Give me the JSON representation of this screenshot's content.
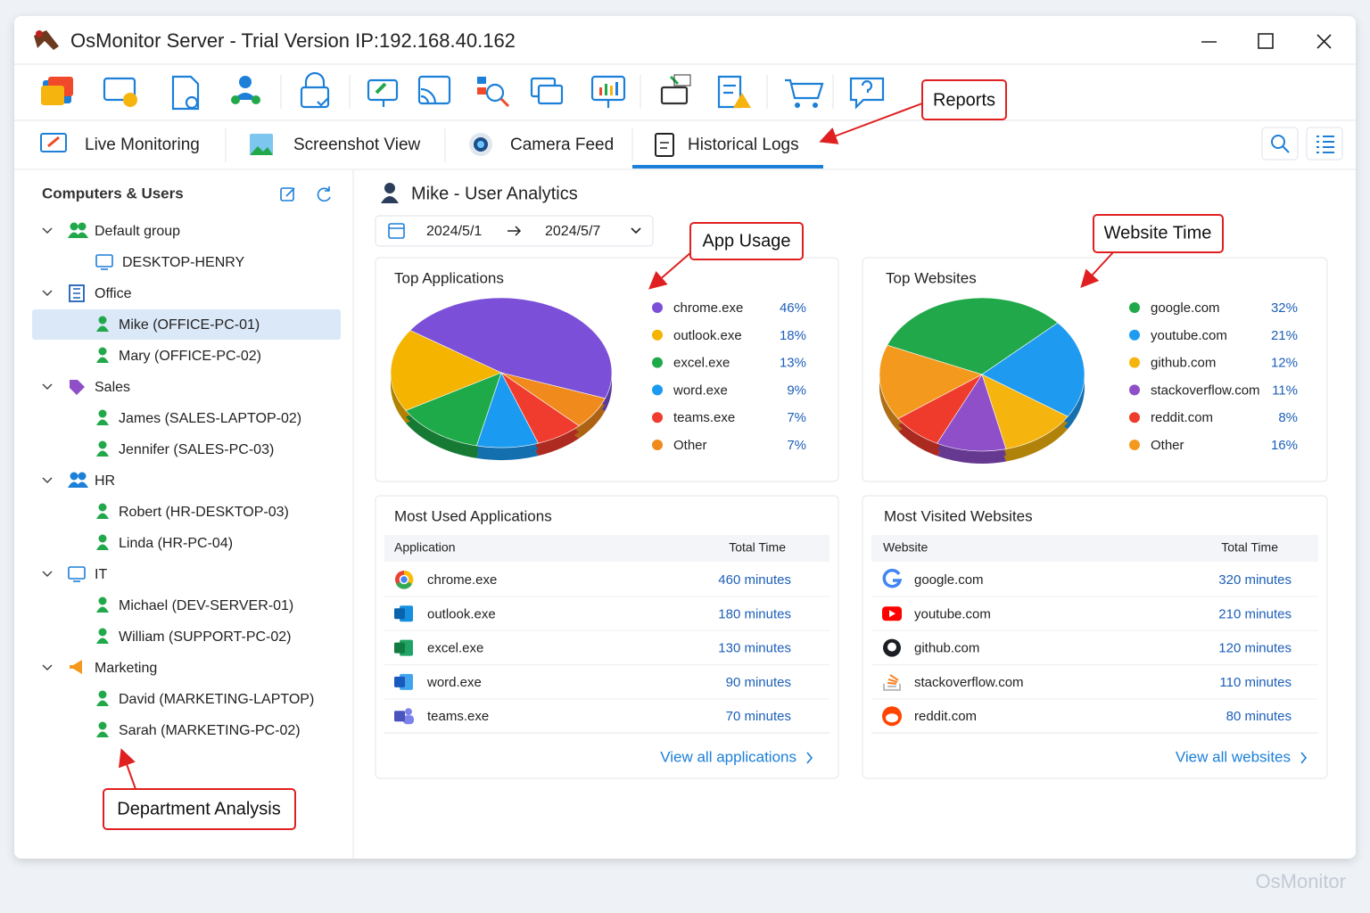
{
  "window": {
    "title": "OsMonitor Server - Trial Version IP:192.168.40.162",
    "watermark": "OsMonitor"
  },
  "tabs": [
    "Live Monitoring",
    "Screenshot View",
    "Camera Feed",
    "Historical Logs"
  ],
  "annotations": {
    "reports": "Reports",
    "app_usage": "App Usage",
    "website_time": "Website Time",
    "department_analysis": "Department Analysis"
  },
  "sidebar": {
    "title": "Computers & Users",
    "tree": [
      {
        "label": "Default group",
        "items": [
          "DESKTOP-HENRY"
        ]
      },
      {
        "label": "Office",
        "items": [
          "Mike (OFFICE-PC-01)",
          "Mary (OFFICE-PC-02)"
        ]
      },
      {
        "label": "Sales",
        "items": [
          "James (SALES-LAPTOP-02)",
          "Jennifer (SALES-PC-03)"
        ]
      },
      {
        "label": "HR",
        "items": [
          "Robert (HR-DESKTOP-03)",
          "Linda (HR-PC-04)"
        ]
      },
      {
        "label": "IT",
        "items": [
          "Michael (DEV-SERVER-01)",
          "William (SUPPORT-PC-02)"
        ]
      },
      {
        "label": "Marketing",
        "items": [
          "David (MARKETING-LAPTOP)",
          "Sarah (MARKETING-PC-02)"
        ]
      }
    ]
  },
  "main": {
    "title": "Mike - User Analytics",
    "date_from": "2024/5/1",
    "date_to": "2024/5/7",
    "top_applications": {
      "title": "Top Applications",
      "categories": [
        "chrome.exe",
        "outlook.exe",
        "excel.exe",
        "word.exe",
        "teams.exe",
        "Other"
      ],
      "values": [
        46,
        18,
        13,
        9,
        7,
        7
      ],
      "value_labels": [
        "46%",
        "18%",
        "13%",
        "9%",
        "7%",
        "7%"
      ],
      "colors": [
        "#7b4fd8",
        "#f4b400",
        "#1faa4a",
        "#1a9af0",
        "#f03c2e",
        "#f08a1c"
      ]
    },
    "top_websites": {
      "title": "Top Websites",
      "categories": [
        "google.com",
        "youtube.com",
        "github.com",
        "stackoverflow.com",
        "reddit.com",
        "Other"
      ],
      "values": [
        32,
        21,
        12,
        11,
        8,
        16
      ],
      "value_labels": [
        "32%",
        "21%",
        "12%",
        "11%",
        "8%",
        "16%"
      ],
      "colors": [
        "#21a84a",
        "#1e9bf0",
        "#f6b40e",
        "#8e4fc8",
        "#ee3b2b",
        "#f39a1e"
      ]
    },
    "most_used_applications": {
      "title": "Most Used Applications",
      "header": [
        "Application",
        "Total Time"
      ],
      "rows": [
        [
          "chrome.exe",
          "460 minutes"
        ],
        [
          "outlook.exe",
          "180 minutes"
        ],
        [
          "excel.exe",
          "130 minutes"
        ],
        [
          "word.exe",
          "90 minutes"
        ],
        [
          "teams.exe",
          "70 minutes"
        ]
      ],
      "link": "View all applications"
    },
    "most_visited_websites": {
      "title": "Most Visited Websites",
      "header": [
        "Website",
        "Total Time"
      ],
      "rows": [
        [
          "google.com",
          "320 minutes"
        ],
        [
          "youtube.com",
          "210 minutes"
        ],
        [
          "github.com",
          "120 minutes"
        ],
        [
          "stackoverflow.com",
          "110 minutes"
        ],
        [
          "reddit.com",
          "80 minutes"
        ]
      ],
      "link": "View all websites"
    }
  }
}
